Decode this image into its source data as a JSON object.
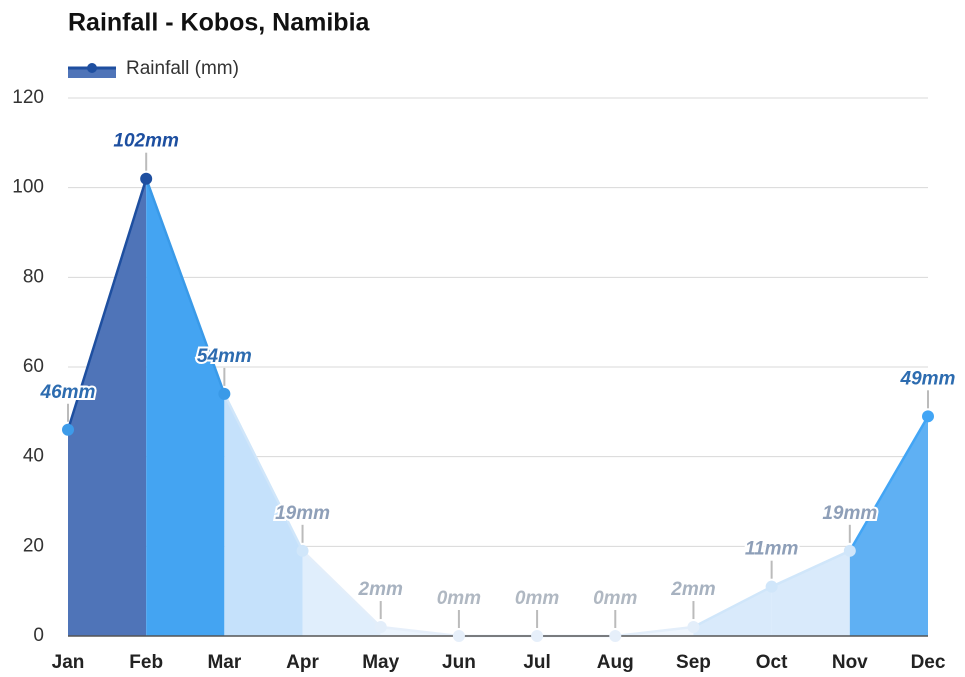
{
  "chart_data": {
    "type": "area",
    "title": "Rainfall - Kobos, Namibia",
    "categories": [
      "Jan",
      "Feb",
      "Mar",
      "Apr",
      "May",
      "Jun",
      "Jul",
      "Aug",
      "Sep",
      "Oct",
      "Nov",
      "Dec"
    ],
    "series": [
      {
        "name": "Rainfall (mm)",
        "color": "#1f4fa0",
        "values": [
          46,
          102,
          54,
          19,
          2,
          0,
          0,
          0,
          2,
          11,
          19,
          49
        ],
        "value_labels": [
          "46mm",
          "102mm",
          "54mm",
          "19mm",
          "2mm",
          "0mm",
          "0mm",
          "0mm",
          "2mm",
          "11mm",
          "19mm",
          "49mm"
        ],
        "segment_colors": [
          "#4f74b8",
          "#44a4f2",
          "#c5e1fb",
          "#e0eefc",
          "#ebf4fd",
          "#eef5fd",
          "#eef5fd",
          "#eef5fd",
          "#d9eafb",
          "#d9eafb",
          "#5fb0f3",
          "#5fb0f3"
        ],
        "point_colors": [
          "#3d9be9",
          "#1e4fa0",
          "#3a9ae8",
          "#d0e6fa",
          "#e3eefa",
          "#e6effa",
          "#e6effa",
          "#e6effa",
          "#e3eefa",
          "#d0e6fa",
          "#d0e6fa",
          "#42a5f5"
        ],
        "label_colors": [
          "#2d6cb0",
          "#1d4fa0",
          "#2d6cb0",
          "#8e9fb8",
          "#a7b2c0",
          "#b0b8c2",
          "#b0b8c2",
          "#b0b8c2",
          "#a7b2c0",
          "#8e9fb8",
          "#8e9fb8",
          "#2d6cb0"
        ]
      }
    ],
    "ylim": [
      0,
      120
    ],
    "yticks": [
      0,
      20,
      40,
      60,
      80,
      100,
      120
    ],
    "grid": true,
    "legend": "top-left"
  }
}
